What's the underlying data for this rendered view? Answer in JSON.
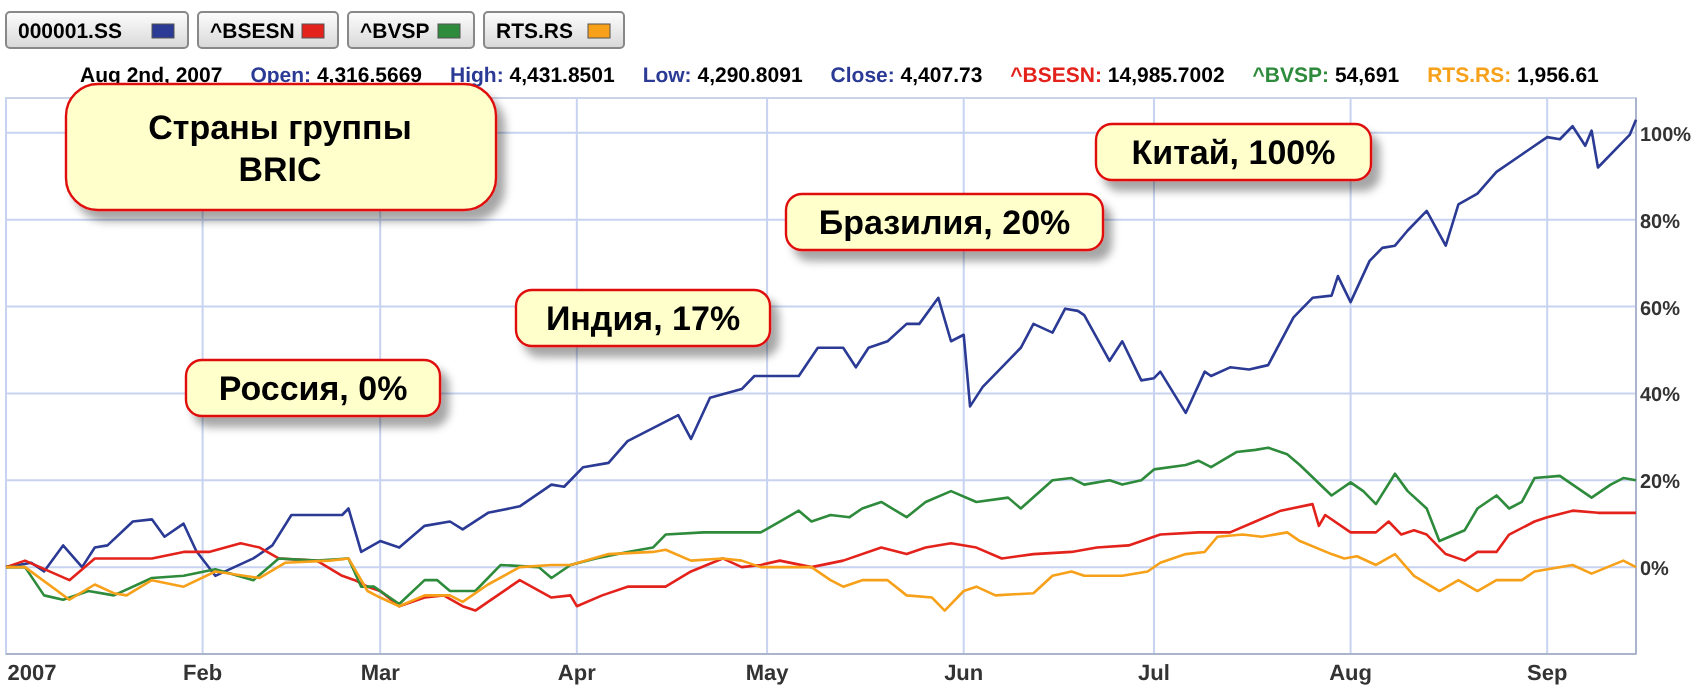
{
  "chart_data": {
    "type": "line",
    "title": "Страны группы BRIC",
    "subtitle": "Aug 2nd, 2007  Open: 4,316.5669  High: 4,431.8501  Low: 4,290.8091  Close: 4,407.73  ^BSESN: 14,985.7002  ^BVSP: 54,691  RTS.RS: 1,956.61",
    "annotations": [
      "Россия, 0%",
      "Индия, 17%",
      "Бразилия, 20%",
      "Китай, 100%"
    ],
    "xlim": [
      "2007-01-01",
      "2007-09-15"
    ],
    "xticks": [
      {
        "value": "2007-01-01",
        "label": "2007"
      },
      {
        "value": "2007-02-01",
        "label": "Feb"
      },
      {
        "value": "2007-03-01",
        "label": "Mar"
      },
      {
        "value": "2007-04-01",
        "label": "Apr"
      },
      {
        "value": "2007-05-01",
        "label": "May"
      },
      {
        "value": "2007-06-01",
        "label": "Jun"
      },
      {
        "value": "2007-07-01",
        "label": "Jul"
      },
      {
        "value": "2007-08-01",
        "label": "Aug"
      },
      {
        "value": "2007-09-01",
        "label": "Sep"
      }
    ],
    "ylim": [
      -20,
      108
    ],
    "yticks": [
      {
        "value": 0,
        "label": "0%"
      },
      {
        "value": 20,
        "label": "20%"
      },
      {
        "value": 40,
        "label": "40%"
      },
      {
        "value": 60,
        "label": "60%"
      },
      {
        "value": 80,
        "label": "80%"
      },
      {
        "value": 100,
        "label": "100%"
      }
    ],
    "grid": true,
    "legend": "top left",
    "line_style": "solid",
    "marker": "none",
    "series": [
      {
        "name": "000001.SS",
        "color": "#2b3a94",
        "x": [
          "2007-01-01",
          "2007-01-05",
          "2007-01-07",
          "2007-01-10",
          "2007-01-13",
          "2007-01-15",
          "2007-01-17",
          "2007-01-21",
          "2007-01-24",
          "2007-01-26",
          "2007-01-29",
          "2007-01-31",
          "2007-02-03",
          "2007-02-09",
          "2007-02-12",
          "2007-02-15",
          "2007-02-23",
          "2007-02-24",
          "2007-02-26",
          "2007-03-01",
          "2007-03-04",
          "2007-03-08",
          "2007-03-12",
          "2007-03-14",
          "2007-03-18",
          "2007-03-23",
          "2007-03-28",
          "2007-03-30",
          "2007-04-02",
          "2007-04-06",
          "2007-04-09",
          "2007-04-13",
          "2007-04-17",
          "2007-04-19",
          "2007-04-22",
          "2007-04-27",
          "2007-04-29",
          "2007-05-06",
          "2007-05-09",
          "2007-05-13",
          "2007-05-15",
          "2007-05-17",
          "2007-05-20",
          "2007-05-23",
          "2007-05-25",
          "2007-05-28",
          "2007-05-30",
          "2007-06-01",
          "2007-06-02",
          "2007-06-04",
          "2007-06-07",
          "2007-06-10",
          "2007-06-12",
          "2007-06-15",
          "2007-06-17",
          "2007-06-19",
          "2007-06-20",
          "2007-06-24",
          "2007-06-26",
          "2007-06-29",
          "2007-07-01",
          "2007-07-02",
          "2007-07-06",
          "2007-07-09",
          "2007-07-10",
          "2007-07-13",
          "2007-07-16",
          "2007-07-19",
          "2007-07-23",
          "2007-07-26",
          "2007-07-29",
          "2007-07-30",
          "2007-08-01",
          "2007-08-04",
          "2007-08-06",
          "2007-08-08",
          "2007-08-10",
          "2007-08-13",
          "2007-08-16",
          "2007-08-18",
          "2007-08-21",
          "2007-08-24",
          "2007-08-28",
          "2007-09-01",
          "2007-09-03",
          "2007-09-05",
          "2007-09-07",
          "2007-09-08",
          "2007-09-09",
          "2007-09-13",
          "2007-09-14",
          "2007-09-15"
        ],
        "values": [
          0,
          1,
          -1,
          5,
          0,
          4.5,
          5,
          10.5,
          11,
          7,
          10,
          3.7,
          -2,
          2,
          5,
          12,
          12,
          13.5,
          3.5,
          6,
          4.5,
          9.5,
          10.5,
          8.7,
          12.5,
          14,
          19,
          18.5,
          23,
          24,
          29,
          32,
          35,
          29.5,
          39,
          41,
          44,
          44,
          50.5,
          50.5,
          46,
          50.5,
          52,
          56,
          56,
          62,
          52,
          53.5,
          37,
          41.5,
          46,
          50.5,
          56,
          54,
          59.5,
          59,
          58,
          47.5,
          52,
          43,
          43.5,
          45,
          35.5,
          45,
          44,
          46,
          45.5,
          46.5,
          57.5,
          62,
          62.5,
          67,
          61,
          70.5,
          73.5,
          74,
          77.5,
          82,
          74,
          83.5,
          86,
          91,
          95,
          99,
          98.5,
          101.5,
          97,
          100.5,
          92,
          98,
          99.5,
          103
        ]
      },
      {
        "name": "^BSESN",
        "color": "#e3231b",
        "x": [
          "2007-01-01",
          "2007-01-04",
          "2007-01-11",
          "2007-01-15",
          "2007-01-21",
          "2007-01-24",
          "2007-01-29",
          "2007-02-02",
          "2007-02-07",
          "2007-02-10",
          "2007-02-13",
          "2007-02-19",
          "2007-02-23",
          "2007-02-25",
          "2007-02-27",
          "2007-03-01",
          "2007-03-04",
          "2007-03-08",
          "2007-03-11",
          "2007-03-14",
          "2007-03-16",
          "2007-03-18",
          "2007-03-23",
          "2007-03-28",
          "2007-03-31",
          "2007-04-01",
          "2007-04-05",
          "2007-04-09",
          "2007-04-15",
          "2007-04-19",
          "2007-04-24",
          "2007-04-27",
          "2007-04-30",
          "2007-05-03",
          "2007-05-08",
          "2007-05-13",
          "2007-05-19",
          "2007-05-23",
          "2007-05-26",
          "2007-05-30",
          "2007-06-03",
          "2007-06-07",
          "2007-06-12",
          "2007-06-18",
          "2007-06-22",
          "2007-06-27",
          "2007-07-02",
          "2007-07-08",
          "2007-07-13",
          "2007-07-17",
          "2007-07-21",
          "2007-07-26",
          "2007-07-27",
          "2007-07-28",
          "2007-08-01",
          "2007-08-05",
          "2007-08-07",
          "2007-08-09",
          "2007-08-11",
          "2007-08-13",
          "2007-08-16",
          "2007-08-19",
          "2007-08-21",
          "2007-08-24",
          "2007-08-26",
          "2007-08-30",
          "2007-09-01",
          "2007-09-05",
          "2007-09-09",
          "2007-09-15"
        ],
        "values": [
          0,
          1.5,
          -3,
          2,
          2,
          2,
          3.5,
          3.5,
          5.5,
          4.5,
          2,
          1.5,
          -2,
          -3,
          -4.5,
          -5.5,
          -9,
          -7,
          -6.5,
          -9,
          -10,
          -8,
          -3,
          -7,
          -6.5,
          -9,
          -6.5,
          -4.5,
          -4.5,
          -1,
          2,
          0,
          0.5,
          1.5,
          0,
          1.5,
          4.5,
          3,
          4.5,
          5.5,
          4.5,
          2,
          3,
          3.5,
          4.5,
          5,
          7.5,
          8,
          8,
          10.5,
          13,
          14.5,
          9.5,
          12,
          8,
          8,
          10.5,
          7.5,
          8.5,
          7.5,
          3,
          1.5,
          3.5,
          3.5,
          7.5,
          10.5,
          11.5,
          13,
          12.5,
          12.5
        ]
      },
      {
        "name": "^BVSP",
        "color": "#2e8b3c",
        "x": [
          "2007-01-01",
          "2007-01-04",
          "2007-01-07",
          "2007-01-10",
          "2007-01-14",
          "2007-01-18",
          "2007-01-24",
          "2007-01-29",
          "2007-02-03",
          "2007-02-09",
          "2007-02-13",
          "2007-02-19",
          "2007-02-24",
          "2007-02-26",
          "2007-02-28",
          "2007-03-04",
          "2007-03-08",
          "2007-03-10",
          "2007-03-12",
          "2007-03-16",
          "2007-03-20",
          "2007-03-26",
          "2007-03-28",
          "2007-03-31",
          "2007-04-04",
          "2007-04-09",
          "2007-04-13",
          "2007-04-15",
          "2007-04-21",
          "2007-04-30",
          "2007-05-03",
          "2007-05-06",
          "2007-05-08",
          "2007-05-11",
          "2007-05-14",
          "2007-05-16",
          "2007-05-19",
          "2007-05-23",
          "2007-05-26",
          "2007-05-30",
          "2007-06-03",
          "2007-06-08",
          "2007-06-10",
          "2007-06-15",
          "2007-06-18",
          "2007-06-20",
          "2007-06-24",
          "2007-06-26",
          "2007-06-29",
          "2007-07-01",
          "2007-07-06",
          "2007-07-08",
          "2007-07-10",
          "2007-07-14",
          "2007-07-17",
          "2007-07-19",
          "2007-07-22",
          "2007-07-24",
          "2007-07-29",
          "2007-08-01",
          "2007-08-03",
          "2007-08-05",
          "2007-08-08",
          "2007-08-10",
          "2007-08-13",
          "2007-08-15",
          "2007-08-19",
          "2007-08-21",
          "2007-08-24",
          "2007-08-26",
          "2007-08-28",
          "2007-08-30",
          "2007-09-03",
          "2007-09-05",
          "2007-09-08",
          "2007-09-11",
          "2007-09-13",
          "2007-09-15"
        ],
        "values": [
          0,
          0,
          -6.5,
          -7.5,
          -5.5,
          -6.5,
          -2.5,
          -2,
          -0.5,
          -3,
          2,
          1.5,
          2,
          -4.5,
          -4.5,
          -8.5,
          -3,
          -3,
          -5.5,
          -5.5,
          0.5,
          0,
          -2.5,
          0.5,
          2,
          3.5,
          4.5,
          7.5,
          8,
          8,
          10.5,
          13,
          10.5,
          12,
          11.5,
          13.5,
          15,
          11.5,
          15,
          17.5,
          15,
          16,
          13.5,
          20,
          20.5,
          19,
          20,
          19,
          20,
          22.5,
          23.5,
          24.5,
          23,
          26.5,
          27,
          27.5,
          26,
          23.5,
          16.5,
          19.5,
          17.5,
          14.5,
          21.5,
          17.5,
          13.5,
          6,
          8.5,
          13.5,
          16.5,
          13.5,
          15,
          20.5,
          21,
          19,
          16,
          19,
          20.5,
          20
        ]
      },
      {
        "name": "RTS.RS",
        "color": "#f7a11a",
        "x": [
          "2007-01-01",
          "2007-01-04",
          "2007-01-11",
          "2007-01-15",
          "2007-01-18",
          "2007-01-20",
          "2007-01-24",
          "2007-01-29",
          "2007-02-03",
          "2007-02-10",
          "2007-02-14",
          "2007-02-21",
          "2007-02-24",
          "2007-02-27",
          "2007-03-01",
          "2007-03-04",
          "2007-03-08",
          "2007-03-12",
          "2007-03-14",
          "2007-03-18",
          "2007-03-23",
          "2007-03-28",
          "2007-03-31",
          "2007-04-06",
          "2007-04-13",
          "2007-04-15",
          "2007-04-19",
          "2007-04-24",
          "2007-04-27",
          "2007-04-30",
          "2007-05-08",
          "2007-05-11",
          "2007-05-13",
          "2007-05-16",
          "2007-05-20",
          "2007-05-23",
          "2007-05-27",
          "2007-05-29",
          "2007-06-01",
          "2007-06-03",
          "2007-06-06",
          "2007-06-12",
          "2007-06-15",
          "2007-06-18",
          "2007-06-20",
          "2007-06-24",
          "2007-06-26",
          "2007-06-30",
          "2007-07-02",
          "2007-07-06",
          "2007-07-09",
          "2007-07-11",
          "2007-07-15",
          "2007-07-18",
          "2007-07-22",
          "2007-07-24",
          "2007-07-29",
          "2007-07-31",
          "2007-08-02",
          "2007-08-05",
          "2007-08-08",
          "2007-08-11",
          "2007-08-15",
          "2007-08-18",
          "2007-08-21",
          "2007-08-24",
          "2007-08-28",
          "2007-08-30",
          "2007-09-05",
          "2007-09-08",
          "2007-09-13",
          "2007-09-15"
        ],
        "values": [
          0,
          0,
          -7.5,
          -4,
          -6,
          -6.5,
          -3,
          -4.5,
          -1,
          -2.5,
          1,
          1.5,
          2,
          -5.5,
          -7,
          -9,
          -6.5,
          -6.5,
          -8,
          -4,
          0,
          0.5,
          0.5,
          3,
          3.5,
          4,
          1.5,
          2,
          1.5,
          0,
          0,
          -3,
          -4.5,
          -3,
          -3,
          -6.5,
          -7,
          -10,
          -5.5,
          -4.5,
          -6.5,
          -6,
          -2,
          -1,
          -2,
          -2,
          -2,
          -1,
          1,
          3,
          3.5,
          7,
          7.5,
          7,
          8,
          6,
          3,
          2,
          2.5,
          0.5,
          3,
          -2,
          -5.5,
          -3,
          -5.5,
          -3,
          -3,
          -1,
          0.5,
          -1.5,
          1.5,
          0
        ]
      }
    ]
  }
}
